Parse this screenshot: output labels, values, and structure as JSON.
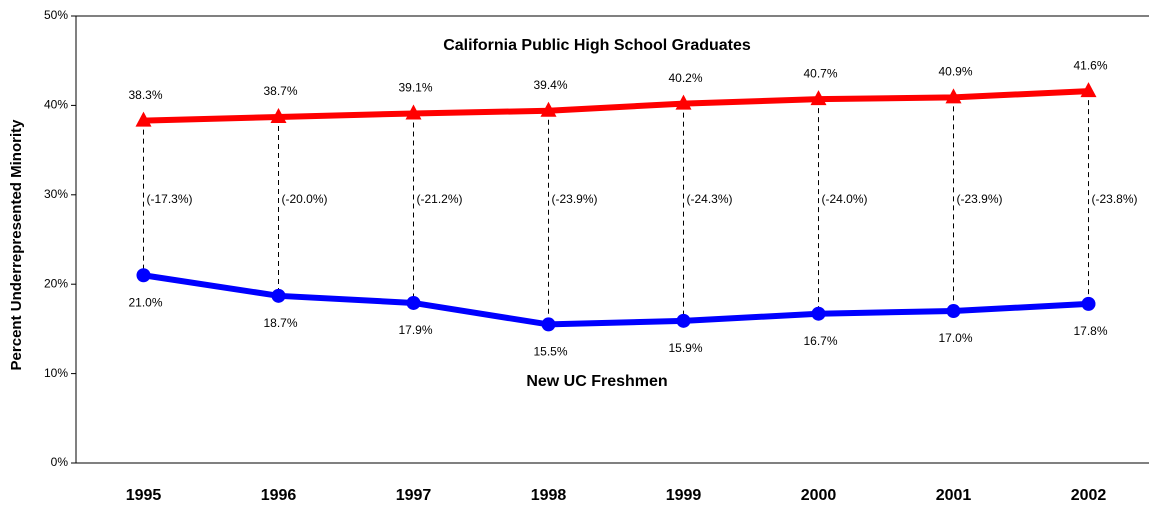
{
  "chart_data": {
    "type": "line",
    "y_label": "Percent Underrepresented Minority",
    "categories": [
      "1995",
      "1996",
      "1997",
      "1998",
      "1999",
      "2000",
      "2001",
      "2002"
    ],
    "series": [
      {
        "name": "California Public High School Graduates",
        "color": "#ff0000",
        "marker": "triangle",
        "values": [
          38.3,
          38.7,
          39.1,
          39.4,
          40.2,
          40.7,
          40.9,
          41.6
        ],
        "value_labels": [
          "38.3%",
          "38.7%",
          "39.1%",
          "39.4%",
          "40.2%",
          "40.7%",
          "40.9%",
          "41.6%"
        ]
      },
      {
        "name": "New UC Freshmen",
        "color": "#0000ff",
        "marker": "circle",
        "values": [
          21.0,
          18.7,
          17.9,
          15.5,
          15.9,
          16.7,
          17.0,
          17.8
        ],
        "value_labels": [
          "21.0%",
          "18.7%",
          "17.9%",
          "15.5%",
          "15.9%",
          "16.7%",
          "17.0%",
          "17.8%"
        ]
      }
    ],
    "gap_labels": [
      "(-17.3%)",
      "(-20.0%)",
      "(-21.2%)",
      "(-23.9%)",
      "(-24.3%)",
      "(-24.0%)",
      "(-23.9%)",
      "(-23.8%)"
    ],
    "ylim": [
      0,
      50
    ],
    "yticks": [
      {
        "value": 0,
        "label": "0%"
      },
      {
        "value": 10,
        "label": "10%"
      },
      {
        "value": 20,
        "label": "20%"
      },
      {
        "value": 30,
        "label": "30%"
      },
      {
        "value": 40,
        "label": "40%"
      },
      {
        "value": 50,
        "label": "50%"
      }
    ]
  }
}
